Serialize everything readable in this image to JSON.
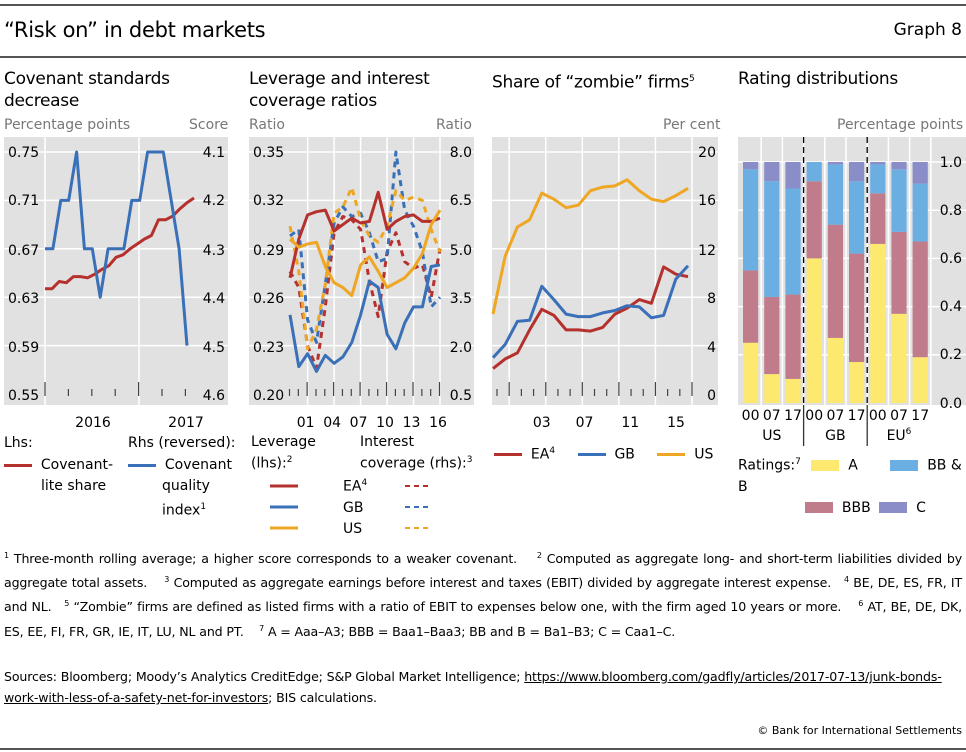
{
  "header": {
    "title": "“Risk on” in debt markets",
    "graph_number": "Graph 8"
  },
  "panels": {
    "p1": {
      "title_line1": "Covenant standards",
      "title_line2": "decrease",
      "lhs_unit": "Percentage points",
      "rhs_unit": "Score"
    },
    "p2": {
      "title_line1": "Leverage and interest",
      "title_line2": "coverage ratios",
      "lhs_unit": "Ratio",
      "rhs_unit": "Ratio"
    },
    "p3": {
      "title": "Share of “zombie” firms",
      "title_sup": "5",
      "rhs_unit": "Per cent"
    },
    "p4": {
      "title": "Rating distributions",
      "rhs_unit": "Percentage points"
    }
  },
  "legends": {
    "p1": {
      "lhs_head": "Lhs:",
      "rhs_head": "Rhs (reversed):",
      "red_l1": "Covenant-",
      "red_l2": "lite share",
      "blue_l1": "Covenant",
      "blue_l2": "quality",
      "blue_l3": "index",
      "blue_sup": "1"
    },
    "p2": {
      "lev_l1": "Leverage",
      "lev_l2": "(lhs):",
      "lev_sup": "2",
      "ic_l1": "Interest",
      "ic_l2": "coverage (rhs):",
      "ic_sup": "3",
      "ea": "EA",
      "ea_sup": "4",
      "gb": "GB",
      "us": "US"
    },
    "p3": {
      "ea": "EA",
      "ea_sup": "4",
      "gb": "GB",
      "us": "US"
    },
    "p4": {
      "head": "Ratings:",
      "head_sup": "7",
      "a": "A",
      "bbb": "BBB",
      "bb": "BB & B",
      "c": "C"
    }
  },
  "colors": {
    "red": "#b5312d",
    "blue": "#3a70b8",
    "orange": "#eea623",
    "yellow": "#fde870",
    "mauve": "#c17c8c",
    "skyblue": "#6aaee2",
    "lavender": "#8a8dc8",
    "plot_bg": "#e1e1e1"
  },
  "footnotes": {
    "n1": "Three-month rolling average; a higher score corresponds to a weaker covenant.",
    "n2": "Computed as aggregate long- and short-term liabilities divided by aggregate total assets.",
    "n3": "Computed as aggregate earnings before interest and taxes (EBIT) divided by aggregate interest expense.",
    "n4": "BE, DE, ES, FR, IT and NL.",
    "n5": "“Zombie” firms are defined as listed firms with a ratio of EBIT to expenses below one, with the firm aged 10 years or more.",
    "n6": "AT, BE, DE, DK, ES, EE, FI, FR, GR, IE, IT, LU, NL and PT.",
    "n7": "A = Aaa–A3; BBB = Baa1–Baa3; BB and B = Ba1–B3; C = Caa1–C."
  },
  "sources": {
    "prefix": "Sources: Bloomberg; Moody’s Analytics CreditEdge; S&P Global Market Intelligence; ",
    "link": "https://www.bloomberg.com/gadfly/articles/2017-07-13/junk-bonds-work-with-less-of-a-safety-net-for-investors",
    "suffix": "; BIS calculations."
  },
  "copyright": "© Bank for International Settlements",
  "chart_data": [
    {
      "type": "line",
      "title": "Covenant standards decrease",
      "ylabel_left": "Percentage points",
      "ylabel_right": "Score",
      "ylim_left": [
        0.55,
        0.75
      ],
      "yticks_left": [
        "0.75",
        "0.71",
        "0.67",
        "0.63",
        "0.59",
        "0.55"
      ],
      "ylim_right_reversed": [
        4.1,
        4.6
      ],
      "yticks_right": [
        "4.1",
        "4.2",
        "4.3",
        "4.4",
        "4.5",
        "4.6"
      ],
      "xtick_labels": [
        "2016",
        "2017"
      ],
      "series": [
        {
          "name": "Covenant-lite share",
          "axis": "left",
          "color": "red",
          "values": [
            0.637,
            0.637,
            0.643,
            0.642,
            0.647,
            0.647,
            0.646,
            0.649,
            0.653,
            0.656,
            0.663,
            0.665,
            0.67,
            0.674,
            0.678,
            0.681,
            0.694,
            0.694,
            0.697,
            0.703,
            0.708,
            0.712
          ]
        },
        {
          "name": "Covenant quality index",
          "axis": "right",
          "color": "blue",
          "values": [
            4.3,
            4.3,
            4.2,
            4.2,
            4.1,
            4.3,
            4.3,
            4.4,
            4.3,
            4.3,
            4.3,
            4.2,
            4.2,
            4.1,
            4.1,
            4.1,
            4.2,
            4.3,
            4.5
          ]
        }
      ]
    },
    {
      "type": "line",
      "title": "Leverage and interest coverage ratios",
      "ylabel_left": "Ratio",
      "ylabel_right": "Ratio",
      "ylim_left": [
        0.2,
        0.35
      ],
      "yticks_left": [
        "0.35",
        "0.32",
        "0.29",
        "0.26",
        "0.23",
        "0.20"
      ],
      "ylim_right": [
        0.5,
        8.0
      ],
      "yticks_right": [
        "8.0",
        "6.5",
        "5.0",
        "3.5",
        "2.0",
        "0.5"
      ],
      "x": [
        1999,
        2000,
        2001,
        2002,
        2003,
        2004,
        2005,
        2006,
        2007,
        2008,
        2009,
        2010,
        2011,
        2012,
        2013,
        2014,
        2015,
        2016
      ],
      "xtick_labels": [
        "01",
        "04",
        "07",
        "10",
        "13",
        "16"
      ],
      "series": [
        {
          "name": "EA leverage",
          "axis": "left",
          "style": "solid",
          "color": "red",
          "values": [
            0.272,
            0.296,
            0.311,
            0.313,
            0.314,
            0.301,
            0.305,
            0.309,
            0.306,
            0.307,
            0.325,
            0.302,
            0.307,
            0.31,
            0.311,
            0.307,
            0.307,
            0.309
          ]
        },
        {
          "name": "GB leverage",
          "axis": "left",
          "style": "solid",
          "color": "blue",
          "values": [
            0.249,
            0.217,
            0.225,
            0.214,
            0.224,
            0.219,
            0.223,
            0.232,
            0.249,
            0.27,
            0.266,
            0.237,
            0.228,
            0.244,
            0.254,
            0.254,
            0.279,
            0.28
          ]
        },
        {
          "name": "US leverage",
          "axis": "left",
          "style": "solid",
          "color": "orange",
          "values": [
            0.296,
            0.291,
            0.293,
            0.294,
            0.279,
            0.269,
            0.266,
            0.261,
            0.28,
            0.285,
            0.276,
            0.266,
            0.269,
            0.272,
            0.278,
            0.287,
            0.305,
            0.314
          ]
        },
        {
          "name": "EA interest coverage",
          "axis": "right",
          "style": "dashed",
          "color": "red",
          "values": [
            4.3,
            3.8,
            2.0,
            1.3,
            3.2,
            5.5,
            6.0,
            5.9,
            5.6,
            4.0,
            2.9,
            4.9,
            5.5,
            4.6,
            4.4,
            4.5,
            3.5,
            5.0
          ]
        },
        {
          "name": "GB interest coverage",
          "axis": "right",
          "style": "dashed",
          "color": "blue",
          "values": [
            5.4,
            5.6,
            2.8,
            2.1,
            3.9,
            5.8,
            6.3,
            6.0,
            6.1,
            5.5,
            4.6,
            4.7,
            8.0,
            6.2,
            5.7,
            4.9,
            3.2,
            3.5
          ]
        },
        {
          "name": "US interest coverage",
          "axis": "right",
          "style": "dashed",
          "color": "orange",
          "values": [
            5.7,
            4.3,
            1.9,
            2.5,
            3.9,
            6.1,
            6.3,
            6.9,
            5.9,
            5.4,
            5.2,
            5.7,
            6.8,
            6.5,
            6.6,
            6.5,
            5.6,
            4.9
          ]
        }
      ]
    },
    {
      "type": "line",
      "title": "Share of “zombie” firms",
      "ylabel_right": "Per cent",
      "ylim": [
        0,
        20
      ],
      "yticks": [
        "20",
        "16",
        "12",
        "8",
        "4",
        "0"
      ],
      "x": [
        2000,
        2001,
        2002,
        2003,
        2004,
        2005,
        2006,
        2007,
        2008,
        2009,
        2010,
        2011,
        2012,
        2013,
        2014,
        2015,
        2016
      ],
      "xtick_labels": [
        "03",
        "07",
        "11",
        "15"
      ],
      "series": [
        {
          "name": "EA",
          "color": "red",
          "values": [
            2.1,
            2.9,
            3.4,
            5.3,
            7.0,
            6.5,
            5.3,
            5.3,
            5.2,
            5.5,
            6.6,
            7.1,
            7.8,
            7.5,
            10.5,
            9.9,
            9.7
          ]
        },
        {
          "name": "GB",
          "color": "blue",
          "values": [
            3.0,
            4.1,
            6.0,
            6.1,
            8.9,
            7.8,
            6.6,
            6.4,
            6.4,
            6.7,
            6.9,
            7.3,
            7.2,
            6.3,
            6.5,
            9.5,
            10.6
          ]
        },
        {
          "name": "US",
          "color": "orange",
          "values": [
            6.6,
            11.4,
            13.8,
            14.4,
            16.6,
            16.1,
            15.4,
            15.6,
            16.8,
            17.1,
            17.2,
            17.7,
            16.8,
            16.1,
            15.9,
            16.4,
            17.0
          ]
        }
      ]
    },
    {
      "type": "bar",
      "subtype": "stacked",
      "title": "Rating distributions",
      "ylabel_right": "Percentage points",
      "ylim": [
        0,
        1.0
      ],
      "yticks": [
        "1.0",
        "0.8",
        "0.6",
        "0.4",
        "0.2",
        "0.0"
      ],
      "groups": [
        {
          "name": "US",
          "name_sup": "",
          "categories": [
            "00",
            "07",
            "17"
          ]
        },
        {
          "name": "GB",
          "name_sup": "",
          "categories": [
            "00",
            "07",
            "17"
          ]
        },
        {
          "name": "EU",
          "name_sup": "6",
          "categories": [
            "00",
            "07",
            "17"
          ]
        }
      ],
      "series": [
        {
          "name": "A",
          "color": "yellow",
          "values": [
            0.25,
            0.12,
            0.1,
            0.6,
            0.27,
            0.17,
            0.66,
            0.37,
            0.19
          ]
        },
        {
          "name": "BBB",
          "color": "mauve",
          "values": [
            0.3,
            0.32,
            0.35,
            0.32,
            0.47,
            0.45,
            0.21,
            0.34,
            0.48
          ]
        },
        {
          "name": "BB & B",
          "color": "skyblue",
          "values": [
            0.42,
            0.48,
            0.44,
            0.08,
            0.25,
            0.3,
            0.12,
            0.26,
            0.24
          ]
        },
        {
          "name": "C",
          "color": "lavender",
          "values": [
            0.03,
            0.08,
            0.11,
            0.0,
            0.01,
            0.08,
            0.01,
            0.03,
            0.09
          ]
        }
      ]
    }
  ]
}
